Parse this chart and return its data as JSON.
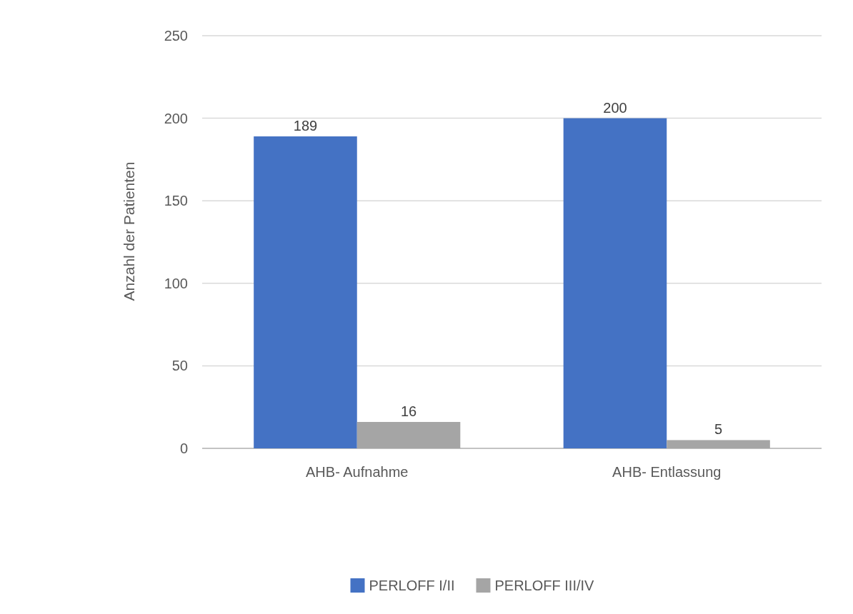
{
  "chart_data": {
    "type": "bar",
    "ylabel": "Anzahl der Patienten",
    "categories": [
      "AHB- Aufnahme",
      "AHB- Entlassung"
    ],
    "series": [
      {
        "name": "PERLOFF I/II",
        "color": "#4472c4",
        "values": [
          189,
          200
        ]
      },
      {
        "name": "PERLOFF III/IV",
        "color": "#a5a5a5",
        "values": [
          16,
          5
        ]
      }
    ],
    "ylim": [
      0,
      250
    ],
    "yticks": [
      0,
      50,
      100,
      150,
      200,
      250
    ],
    "grid": "y",
    "legend": "bottom",
    "data_labels": true
  }
}
